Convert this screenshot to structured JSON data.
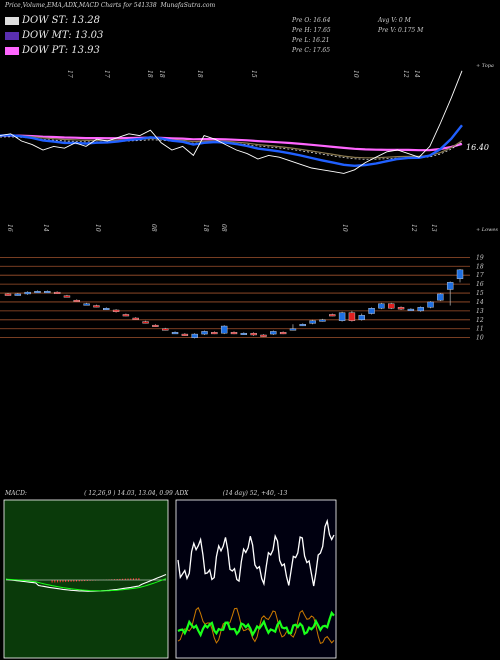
{
  "header": {
    "title": "Price,Volume,EMA,ADX,MACD Charts for 541338",
    "site": "MunafaSutra.com"
  },
  "legend": [
    {
      "label": "DOW ST: 13.28",
      "color": "#dedede"
    },
    {
      "label": "DOW MT: 13.03",
      "color": "#5a2fb0"
    },
    {
      "label": "DOW PT: 13.93",
      "color": "#ff66ff"
    }
  ],
  "info": {
    "open": "Pre  O: 16.64",
    "high": "Pre  H: 17.65",
    "low": "Pre  L: 16.21",
    "close": "Pre  C: 17.65",
    "avgvol": "Avg V: 0  M",
    "prevol": "Pre  V: 0.175 M"
  },
  "colors": {
    "bull": "#1f6fe0",
    "bear": "#e02020",
    "grid": "#a0522d",
    "ema_fast": "#2060ff",
    "ema_slow": "#ff66ff",
    "adx": "#ffffff",
    "plus_di": "#1aff1a",
    "minus_di": "#cc7a00"
  },
  "chart_data": [
    {
      "type": "line",
      "panel": "ema",
      "top_dates": [
        "17",
        "17",
        "18",
        "18",
        "18",
        "15",
        "10",
        "12",
        "14"
      ],
      "top_right_label": "+ Topa",
      "last_value_label": "16.40",
      "series": [
        {
          "name": "price",
          "values": [
            12.8,
            12.9,
            12.5,
            12.3,
            12.0,
            12.2,
            12.1,
            12.4,
            12.2,
            12.6,
            12.5,
            12.7,
            12.9,
            12.8,
            13.1,
            12.4,
            12.0,
            12.2,
            11.7,
            12.8,
            12.6,
            12.3,
            12.0,
            11.8,
            11.5,
            11.7,
            11.6,
            11.4,
            11.2,
            11.0,
            10.9,
            10.8,
            10.7,
            10.9,
            11.3,
            11.6,
            11.9,
            12.0,
            11.8,
            11.6,
            12.2,
            13.5,
            14.9,
            16.4
          ]
        }
      ]
    },
    {
      "type": "bar",
      "panel": "price",
      "bottom_dates": [
        "16",
        "14",
        "10",
        "08",
        "18",
        "08",
        "10",
        "12",
        "13"
      ],
      "bottom_right_label": "+ Lowes",
      "y_ticks": [
        "19",
        "18",
        "17",
        "16",
        "15",
        "14",
        "13",
        "12",
        "11",
        "10"
      ],
      "ylim": [
        9.4,
        19.6
      ],
      "candles": [
        {
          "o": 14.9,
          "c": 14.8,
          "h": 15.0,
          "l": 14.7
        },
        {
          "o": 14.8,
          "c": 14.9,
          "h": 15.0,
          "l": 14.7
        },
        {
          "o": 14.9,
          "c": 15.1,
          "h": 15.2,
          "l": 14.8
        },
        {
          "o": 15.1,
          "c": 15.2,
          "h": 15.3,
          "l": 15.0
        },
        {
          "o": 15.2,
          "c": 15.2,
          "h": 15.3,
          "l": 15.1
        },
        {
          "o": 15.1,
          "c": 15.0,
          "h": 15.2,
          "l": 14.9
        },
        {
          "o": 14.7,
          "c": 14.6,
          "h": 14.8,
          "l": 14.5
        },
        {
          "o": 14.2,
          "c": 14.1,
          "h": 14.3,
          "l": 14.0
        },
        {
          "o": 13.8,
          "c": 13.8,
          "h": 13.9,
          "l": 13.7
        },
        {
          "o": 13.6,
          "c": 13.5,
          "h": 13.7,
          "l": 13.4
        },
        {
          "o": 13.3,
          "c": 13.3,
          "h": 13.4,
          "l": 13.2
        },
        {
          "o": 13.1,
          "c": 12.9,
          "h": 13.2,
          "l": 12.8
        },
        {
          "o": 12.6,
          "c": 12.5,
          "h": 12.7,
          "l": 12.4
        },
        {
          "o": 12.2,
          "c": 12.1,
          "h": 12.3,
          "l": 12.0
        },
        {
          "o": 11.8,
          "c": 11.7,
          "h": 11.9,
          "l": 11.6
        },
        {
          "o": 11.4,
          "c": 11.3,
          "h": 11.5,
          "l": 11.2
        },
        {
          "o": 11.0,
          "c": 10.9,
          "h": 11.1,
          "l": 10.8
        },
        {
          "o": 10.6,
          "c": 10.6,
          "h": 10.7,
          "l": 10.5
        },
        {
          "o": 10.4,
          "c": 10.3,
          "h": 10.5,
          "l": 10.2
        },
        {
          "o": 10.0,
          "c": 10.4,
          "h": 10.5,
          "l": 9.9
        },
        {
          "o": 10.4,
          "c": 10.7,
          "h": 10.8,
          "l": 10.3
        },
        {
          "o": 10.6,
          "c": 10.5,
          "h": 10.7,
          "l": 10.4
        },
        {
          "o": 10.5,
          "c": 11.3,
          "h": 11.4,
          "l": 10.4
        },
        {
          "o": 10.6,
          "c": 10.5,
          "h": 10.7,
          "l": 10.4
        },
        {
          "o": 10.4,
          "c": 10.5,
          "h": 10.6,
          "l": 10.3
        },
        {
          "o": 10.5,
          "c": 10.3,
          "h": 10.6,
          "l": 10.2
        },
        {
          "o": 10.3,
          "c": 10.2,
          "h": 10.4,
          "l": 10.1
        },
        {
          "o": 10.4,
          "c": 10.7,
          "h": 10.8,
          "l": 10.3
        },
        {
          "o": 10.6,
          "c": 10.5,
          "h": 10.7,
          "l": 10.4
        },
        {
          "o": 10.9,
          "c": 11.0,
          "h": 11.5,
          "l": 10.8
        },
        {
          "o": 11.4,
          "c": 11.5,
          "h": 11.6,
          "l": 11.3
        },
        {
          "o": 11.6,
          "c": 11.9,
          "h": 12.0,
          "l": 11.5
        },
        {
          "o": 11.9,
          "c": 12.0,
          "h": 12.1,
          "l": 11.8
        },
        {
          "o": 12.6,
          "c": 12.5,
          "h": 12.7,
          "l": 12.4
        },
        {
          "o": 11.9,
          "c": 12.8,
          "h": 12.9,
          "l": 11.8
        },
        {
          "o": 12.8,
          "c": 11.9,
          "h": 13.0,
          "l": 11.8
        },
        {
          "o": 12.0,
          "c": 12.5,
          "h": 12.7,
          "l": 11.9
        },
        {
          "o": 12.7,
          "c": 13.3,
          "h": 13.4,
          "l": 12.6
        },
        {
          "o": 13.3,
          "c": 13.8,
          "h": 13.9,
          "l": 13.2
        },
        {
          "o": 13.8,
          "c": 13.3,
          "h": 13.9,
          "l": 13.2
        },
        {
          "o": 13.4,
          "c": 13.2,
          "h": 13.5,
          "l": 13.1
        },
        {
          "o": 13.1,
          "c": 13.2,
          "h": 13.3,
          "l": 13.0
        },
        {
          "o": 13.0,
          "c": 13.4,
          "h": 13.5,
          "l": 12.9
        },
        {
          "o": 13.4,
          "c": 14.0,
          "h": 14.1,
          "l": 13.3
        },
        {
          "o": 14.2,
          "c": 14.9,
          "h": 15.0,
          "l": 14.1
        },
        {
          "o": 15.4,
          "c": 16.2,
          "h": 16.3,
          "l": 13.6
        },
        {
          "o": 16.6,
          "c": 17.6,
          "h": 17.7,
          "l": 16.2
        }
      ]
    },
    {
      "type": "line",
      "panel": "macd",
      "title": "MACD:",
      "params": "( 12,26,9 ) 14.03, 13.04, 0.99"
    },
    {
      "type": "line",
      "panel": "adx",
      "title": "ADX",
      "params": "(14  day) 52,  +40,  -13"
    }
  ]
}
